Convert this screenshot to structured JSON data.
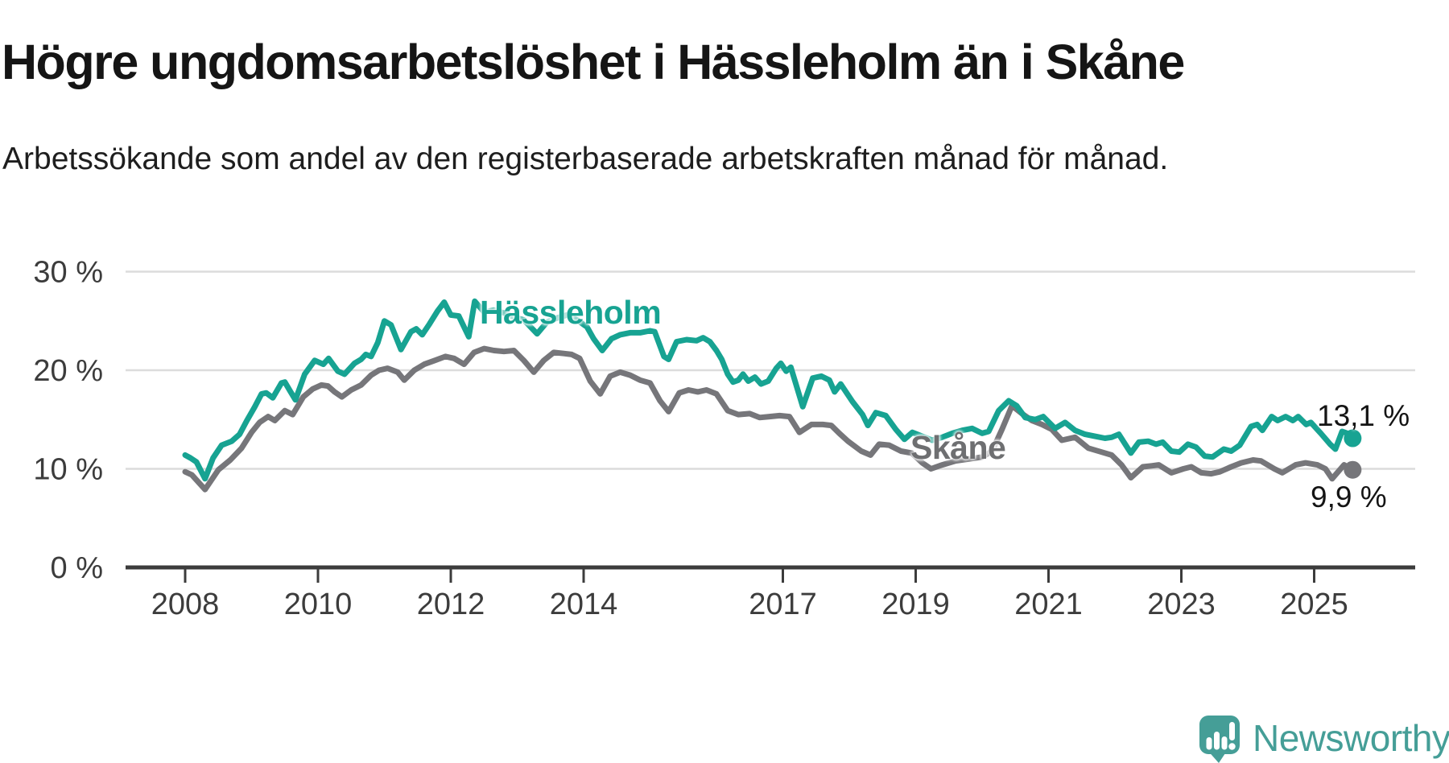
{
  "header": {
    "title": "Högre ungdomsarbetslöshet i Hässleholm än i Skåne",
    "subtitle": "Arbetssökande som andel av den registerbaserade arbetskraften månad för månad."
  },
  "colors": {
    "hassleholm_line": "#17a392",
    "skane_line": "#76767a",
    "grid": "#dcdcdc",
    "axis": "#3c3c3c",
    "tick_text": "#3c3c3c",
    "title_text": "#151515",
    "value_text": "#141414",
    "logo_teal": "#459e97"
  },
  "chart_data": {
    "type": "line",
    "title": "Högre ungdomsarbetslöshet i Hässleholm än i Skåne",
    "subtitle": "Arbetssökande som andel av den registerbaserade arbetskraften månad för månad.",
    "unit": "%",
    "grid": "horizontal",
    "legend_position": "inline-labels-on-lines",
    "x_axis": {
      "range": [
        2008.0,
        2025.58
      ],
      "tick_years": [
        2008,
        2010,
        2012,
        2014,
        2017,
        2019,
        2021,
        2023,
        2025
      ]
    },
    "y_axis": {
      "range": [
        0,
        30
      ],
      "ticks": [
        {
          "value": 0,
          "label": "0 %"
        },
        {
          "value": 10,
          "label": "10 %"
        },
        {
          "value": 20,
          "label": "20 %"
        },
        {
          "value": 30,
          "label": "30 %"
        }
      ]
    },
    "series": [
      {
        "name": "Skåne",
        "color": "#76767a",
        "end_value": 9.9,
        "end_label": "9,9 %",
        "points": [
          [
            2008.0,
            9.7
          ],
          [
            2008.1,
            9.4
          ],
          [
            2008.3,
            7.9
          ],
          [
            2008.5,
            9.9
          ],
          [
            2008.68,
            10.9
          ],
          [
            2008.85,
            12.1
          ],
          [
            2009.0,
            13.7
          ],
          [
            2009.12,
            14.7
          ],
          [
            2009.25,
            15.3
          ],
          [
            2009.35,
            14.9
          ],
          [
            2009.5,
            15.9
          ],
          [
            2009.62,
            15.5
          ],
          [
            2009.78,
            17.3
          ],
          [
            2009.92,
            18.1
          ],
          [
            2010.05,
            18.5
          ],
          [
            2010.15,
            18.4
          ],
          [
            2010.25,
            17.8
          ],
          [
            2010.36,
            17.3
          ],
          [
            2010.5,
            18.0
          ],
          [
            2010.65,
            18.5
          ],
          [
            2010.8,
            19.5
          ],
          [
            2010.92,
            20.0
          ],
          [
            2011.05,
            20.2
          ],
          [
            2011.2,
            19.8
          ],
          [
            2011.3,
            19.0
          ],
          [
            2011.45,
            20.0
          ],
          [
            2011.6,
            20.6
          ],
          [
            2011.76,
            21.0
          ],
          [
            2011.92,
            21.4
          ],
          [
            2012.05,
            21.2
          ],
          [
            2012.2,
            20.6
          ],
          [
            2012.35,
            21.8
          ],
          [
            2012.5,
            22.2
          ],
          [
            2012.65,
            22.0
          ],
          [
            2012.8,
            21.9
          ],
          [
            2012.95,
            22.0
          ],
          [
            2013.1,
            21.0
          ],
          [
            2013.25,
            19.8
          ],
          [
            2013.4,
            21.0
          ],
          [
            2013.55,
            21.8
          ],
          [
            2013.7,
            21.7
          ],
          [
            2013.82,
            21.6
          ],
          [
            2013.94,
            21.2
          ],
          [
            2014.1,
            18.9
          ],
          [
            2014.25,
            17.6
          ],
          [
            2014.4,
            19.4
          ],
          [
            2014.55,
            19.8
          ],
          [
            2014.7,
            19.5
          ],
          [
            2014.85,
            19.0
          ],
          [
            2015.0,
            18.7
          ],
          [
            2015.15,
            16.9
          ],
          [
            2015.28,
            15.8
          ],
          [
            2015.44,
            17.7
          ],
          [
            2015.58,
            18.0
          ],
          [
            2015.72,
            17.8
          ],
          [
            2015.85,
            18.0
          ],
          [
            2016.0,
            17.6
          ],
          [
            2016.17,
            15.9
          ],
          [
            2016.33,
            15.5
          ],
          [
            2016.5,
            15.6
          ],
          [
            2016.65,
            15.2
          ],
          [
            2016.8,
            15.3
          ],
          [
            2016.95,
            15.4
          ],
          [
            2017.1,
            15.3
          ],
          [
            2017.25,
            13.7
          ],
          [
            2017.43,
            14.5
          ],
          [
            2017.6,
            14.5
          ],
          [
            2017.73,
            14.4
          ],
          [
            2017.85,
            13.6
          ],
          [
            2017.98,
            12.8
          ],
          [
            2018.18,
            11.8
          ],
          [
            2018.32,
            11.4
          ],
          [
            2018.45,
            12.5
          ],
          [
            2018.6,
            12.4
          ],
          [
            2018.78,
            11.8
          ],
          [
            2018.94,
            11.6
          ],
          [
            2019.1,
            10.6
          ],
          [
            2019.23,
            10.0
          ],
          [
            2019.4,
            10.4
          ],
          [
            2019.6,
            10.8
          ],
          [
            2019.8,
            11.0
          ],
          [
            2020.0,
            11.2
          ],
          [
            2020.15,
            11.8
          ],
          [
            2020.3,
            14.0
          ],
          [
            2020.45,
            16.4
          ],
          [
            2020.6,
            15.6
          ],
          [
            2020.75,
            14.9
          ],
          [
            2020.9,
            14.5
          ],
          [
            2021.05,
            14.0
          ],
          [
            2021.2,
            12.9
          ],
          [
            2021.4,
            13.2
          ],
          [
            2021.6,
            12.1
          ],
          [
            2021.8,
            11.7
          ],
          [
            2021.95,
            11.4
          ],
          [
            2022.1,
            10.4
          ],
          [
            2022.24,
            9.1
          ],
          [
            2022.42,
            10.2
          ],
          [
            2022.55,
            10.3
          ],
          [
            2022.66,
            10.4
          ],
          [
            2022.85,
            9.6
          ],
          [
            2023.03,
            10.0
          ],
          [
            2023.15,
            10.2
          ],
          [
            2023.3,
            9.6
          ],
          [
            2023.45,
            9.5
          ],
          [
            2023.58,
            9.7
          ],
          [
            2023.75,
            10.2
          ],
          [
            2023.9,
            10.6
          ],
          [
            2024.08,
            10.9
          ],
          [
            2024.2,
            10.8
          ],
          [
            2024.4,
            10.0
          ],
          [
            2024.52,
            9.6
          ],
          [
            2024.72,
            10.4
          ],
          [
            2024.87,
            10.6
          ],
          [
            2025.05,
            10.4
          ],
          [
            2025.17,
            10.0
          ],
          [
            2025.27,
            9.0
          ],
          [
            2025.45,
            10.4
          ],
          [
            2025.58,
            9.9
          ]
        ]
      },
      {
        "name": "Hässleholm",
        "color": "#17a392",
        "end_value": 13.1,
        "end_label": "13,1 %",
        "points": [
          [
            2008.0,
            11.4
          ],
          [
            2008.08,
            11.1
          ],
          [
            2008.17,
            10.7
          ],
          [
            2008.3,
            9.0
          ],
          [
            2008.42,
            11.1
          ],
          [
            2008.55,
            12.4
          ],
          [
            2008.7,
            12.8
          ],
          [
            2008.82,
            13.5
          ],
          [
            2008.93,
            14.9
          ],
          [
            2009.05,
            16.3
          ],
          [
            2009.15,
            17.6
          ],
          [
            2009.22,
            17.7
          ],
          [
            2009.32,
            17.2
          ],
          [
            2009.45,
            18.7
          ],
          [
            2009.5,
            18.8
          ],
          [
            2009.58,
            17.9
          ],
          [
            2009.66,
            17.0
          ],
          [
            2009.8,
            19.6
          ],
          [
            2009.95,
            21.0
          ],
          [
            2010.08,
            20.6
          ],
          [
            2010.16,
            21.2
          ],
          [
            2010.3,
            19.9
          ],
          [
            2010.4,
            19.6
          ],
          [
            2010.55,
            20.7
          ],
          [
            2010.65,
            21.1
          ],
          [
            2010.72,
            21.6
          ],
          [
            2010.8,
            21.4
          ],
          [
            2010.9,
            22.8
          ],
          [
            2011.0,
            25.0
          ],
          [
            2011.1,
            24.6
          ],
          [
            2011.25,
            22.1
          ],
          [
            2011.4,
            23.9
          ],
          [
            2011.48,
            24.2
          ],
          [
            2011.57,
            23.6
          ],
          [
            2011.68,
            24.7
          ],
          [
            2011.8,
            26.0
          ],
          [
            2011.9,
            26.9
          ],
          [
            2012.0,
            25.6
          ],
          [
            2012.12,
            25.5
          ],
          [
            2012.27,
            23.4
          ],
          [
            2012.36,
            27.0
          ],
          [
            2012.5,
            25.9
          ],
          [
            2012.65,
            26.1
          ],
          [
            2012.8,
            25.8
          ],
          [
            2012.95,
            25.4
          ],
          [
            2013.1,
            25.1
          ],
          [
            2013.3,
            23.7
          ],
          [
            2013.45,
            24.9
          ],
          [
            2013.6,
            25.3
          ],
          [
            2013.75,
            25.6
          ],
          [
            2013.9,
            25.1
          ],
          [
            2014.05,
            24.4
          ],
          [
            2014.15,
            23.2
          ],
          [
            2014.28,
            22.0
          ],
          [
            2014.42,
            23.2
          ],
          [
            2014.55,
            23.6
          ],
          [
            2014.7,
            23.8
          ],
          [
            2014.85,
            23.8
          ],
          [
            2015.0,
            24.0
          ],
          [
            2015.07,
            23.9
          ],
          [
            2015.21,
            21.4
          ],
          [
            2015.28,
            21.1
          ],
          [
            2015.4,
            22.9
          ],
          [
            2015.55,
            23.1
          ],
          [
            2015.7,
            23.0
          ],
          [
            2015.8,
            23.3
          ],
          [
            2015.9,
            22.9
          ],
          [
            2016.0,
            22.0
          ],
          [
            2016.08,
            21.1
          ],
          [
            2016.17,
            19.6
          ],
          [
            2016.25,
            18.8
          ],
          [
            2016.33,
            19.0
          ],
          [
            2016.4,
            19.6
          ],
          [
            2016.48,
            18.9
          ],
          [
            2016.58,
            19.3
          ],
          [
            2016.67,
            18.6
          ],
          [
            2016.78,
            18.9
          ],
          [
            2016.9,
            20.2
          ],
          [
            2016.97,
            20.7
          ],
          [
            2017.05,
            19.9
          ],
          [
            2017.12,
            20.3
          ],
          [
            2017.3,
            16.3
          ],
          [
            2017.45,
            19.2
          ],
          [
            2017.58,
            19.4
          ],
          [
            2017.7,
            19.0
          ],
          [
            2017.78,
            17.8
          ],
          [
            2017.87,
            18.6
          ],
          [
            2018.05,
            16.8
          ],
          [
            2018.2,
            15.5
          ],
          [
            2018.28,
            14.4
          ],
          [
            2018.4,
            15.7
          ],
          [
            2018.55,
            15.4
          ],
          [
            2018.7,
            14.0
          ],
          [
            2018.83,
            13.0
          ],
          [
            2018.95,
            13.7
          ],
          [
            2019.1,
            13.3
          ],
          [
            2019.25,
            12.9
          ],
          [
            2019.4,
            13.2
          ],
          [
            2019.55,
            13.6
          ],
          [
            2019.7,
            13.9
          ],
          [
            2019.85,
            14.1
          ],
          [
            2020.0,
            13.6
          ],
          [
            2020.1,
            13.8
          ],
          [
            2020.25,
            15.9
          ],
          [
            2020.4,
            16.9
          ],
          [
            2020.52,
            16.4
          ],
          [
            2020.65,
            15.2
          ],
          [
            2020.8,
            15.0
          ],
          [
            2020.92,
            15.3
          ],
          [
            2021.1,
            14.1
          ],
          [
            2021.25,
            14.7
          ],
          [
            2021.4,
            13.9
          ],
          [
            2021.55,
            13.5
          ],
          [
            2021.7,
            13.3
          ],
          [
            2021.85,
            13.1
          ],
          [
            2021.95,
            13.2
          ],
          [
            2022.06,
            13.5
          ],
          [
            2022.24,
            11.6
          ],
          [
            2022.36,
            12.7
          ],
          [
            2022.5,
            12.8
          ],
          [
            2022.62,
            12.5
          ],
          [
            2022.72,
            12.7
          ],
          [
            2022.85,
            11.8
          ],
          [
            2022.97,
            11.7
          ],
          [
            2023.1,
            12.5
          ],
          [
            2023.22,
            12.2
          ],
          [
            2023.35,
            11.3
          ],
          [
            2023.47,
            11.2
          ],
          [
            2023.64,
            12.0
          ],
          [
            2023.75,
            11.8
          ],
          [
            2023.88,
            12.4
          ],
          [
            2024.05,
            14.3
          ],
          [
            2024.14,
            14.5
          ],
          [
            2024.22,
            13.9
          ],
          [
            2024.36,
            15.3
          ],
          [
            2024.45,
            14.9
          ],
          [
            2024.57,
            15.3
          ],
          [
            2024.68,
            14.9
          ],
          [
            2024.76,
            15.3
          ],
          [
            2024.88,
            14.5
          ],
          [
            2024.95,
            14.7
          ],
          [
            2025.1,
            13.6
          ],
          [
            2025.24,
            12.5
          ],
          [
            2025.32,
            12.0
          ],
          [
            2025.42,
            13.8
          ],
          [
            2025.5,
            13.6
          ],
          [
            2025.58,
            13.1
          ]
        ]
      }
    ]
  },
  "footer": {
    "logo_text": "Newsworthy"
  }
}
